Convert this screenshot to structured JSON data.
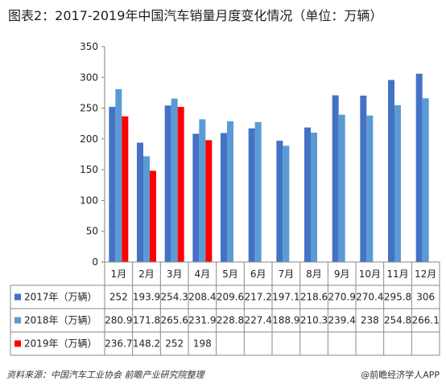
{
  "title": "图表2：2017-2019年中国汽车销量月度变化情况（单位：万辆）",
  "source": "资料来源：中国汽车工业协会 前瞻产业研究院整理",
  "brand": "@前瞻经济学人APP",
  "colors": {
    "s2017": "#4472c4",
    "s2018": "#5b9bd5",
    "s2019": "#ff0000",
    "grid": "#d0d0d0",
    "axis": "#808080"
  },
  "chart_data": {
    "type": "bar",
    "categories": [
      "1月",
      "2月",
      "3月",
      "4月",
      "5月",
      "6月",
      "7月",
      "8月",
      "9月",
      "10月",
      "11月",
      "12月"
    ],
    "ylim": [
      0,
      350
    ],
    "yticks": [
      0,
      50,
      100,
      150,
      200,
      250,
      300,
      350
    ],
    "grid": false,
    "legend": "table-bottom",
    "series": [
      {
        "name": "2017年（万辆）",
        "values": [
          252,
          193.9,
          254.3,
          208.4,
          209.6,
          217.2,
          197.1,
          218.6,
          270.9,
          270.4,
          295.8,
          306
        ]
      },
      {
        "name": "2018年（万辆）",
        "values": [
          280.9,
          171.8,
          265.6,
          231.9,
          228.8,
          227.4,
          188.9,
          210.3,
          239.4,
          238,
          254.8,
          266.1
        ]
      },
      {
        "name": "2019年（万辆）",
        "values": [
          236.7,
          148.2,
          252,
          198,
          null,
          null,
          null,
          null,
          null,
          null,
          null,
          null
        ]
      }
    ]
  }
}
